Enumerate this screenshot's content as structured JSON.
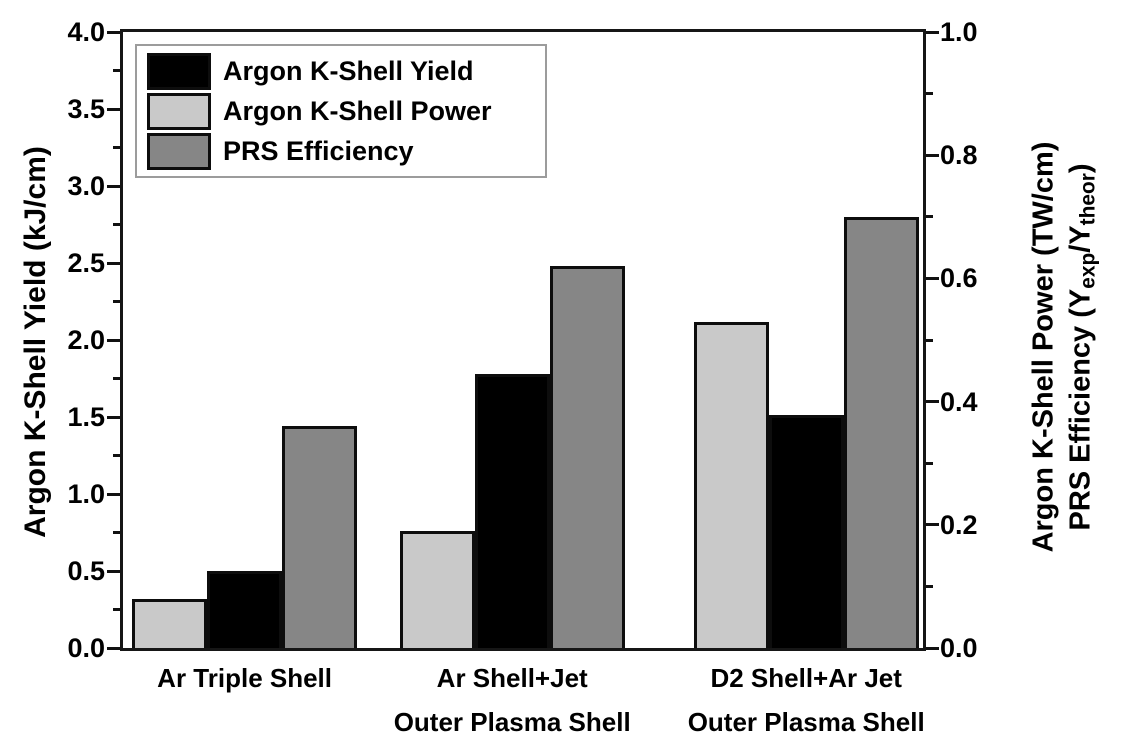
{
  "chart_data": {
    "type": "bar",
    "title": "",
    "left_axis": {
      "label": "Argon K-Shell Yield (kJ/cm)",
      "range": [
        0.0,
        4.0
      ],
      "major_ticks": [
        0.0,
        0.5,
        1.0,
        1.5,
        2.0,
        2.5,
        3.0,
        3.5,
        4.0
      ],
      "minor_ticks": [
        0.25,
        0.75,
        1.25,
        1.75,
        2.25,
        2.75,
        3.25,
        3.75
      ]
    },
    "right_axis": {
      "label_line1": "Argon K-Shell Power (TW/cm)",
      "label_line2_parts": {
        "p1": "PRS Efficiency (Y",
        "sub1": "exp",
        "p2": "/Y",
        "sub2": "theor",
        "p3": ")"
      },
      "range": [
        0.0,
        1.0
      ],
      "major_ticks": [
        0.0,
        0.2,
        0.4,
        0.6,
        0.8,
        1.0
      ],
      "minor_ticks": [
        0.1,
        0.3,
        0.5,
        0.7,
        0.9
      ]
    },
    "categories": [
      {
        "line1": "Ar Triple Shell",
        "line2": ""
      },
      {
        "line1": "Ar Shell+Jet",
        "line2": "Outer Plasma Shell"
      },
      {
        "line1": "D2 Shell+Ar Jet",
        "line2": "Outer Plasma Shell"
      }
    ],
    "series": [
      {
        "name": "Argon K-Shell Power",
        "axis": "right",
        "color": "#c9c9c9",
        "values": [
          0.08,
          0.19,
          0.53
        ]
      },
      {
        "name": "Argon K-Shell Yield",
        "axis": "left",
        "color": "#000000",
        "values": [
          0.5,
          1.78,
          1.51
        ]
      },
      {
        "name": "PRS Efficiency",
        "axis": "right",
        "color": "#868686",
        "values": [
          0.36,
          0.62,
          0.7
        ]
      }
    ],
    "legend": [
      {
        "label": "Argon K-Shell Yield",
        "color": "#000000"
      },
      {
        "label": "Argon K-Shell Power",
        "color": "#c9c9c9"
      },
      {
        "label": "PRS Efficiency",
        "color": "#868686"
      }
    ],
    "legend_position": "top-left",
    "grid": false
  }
}
